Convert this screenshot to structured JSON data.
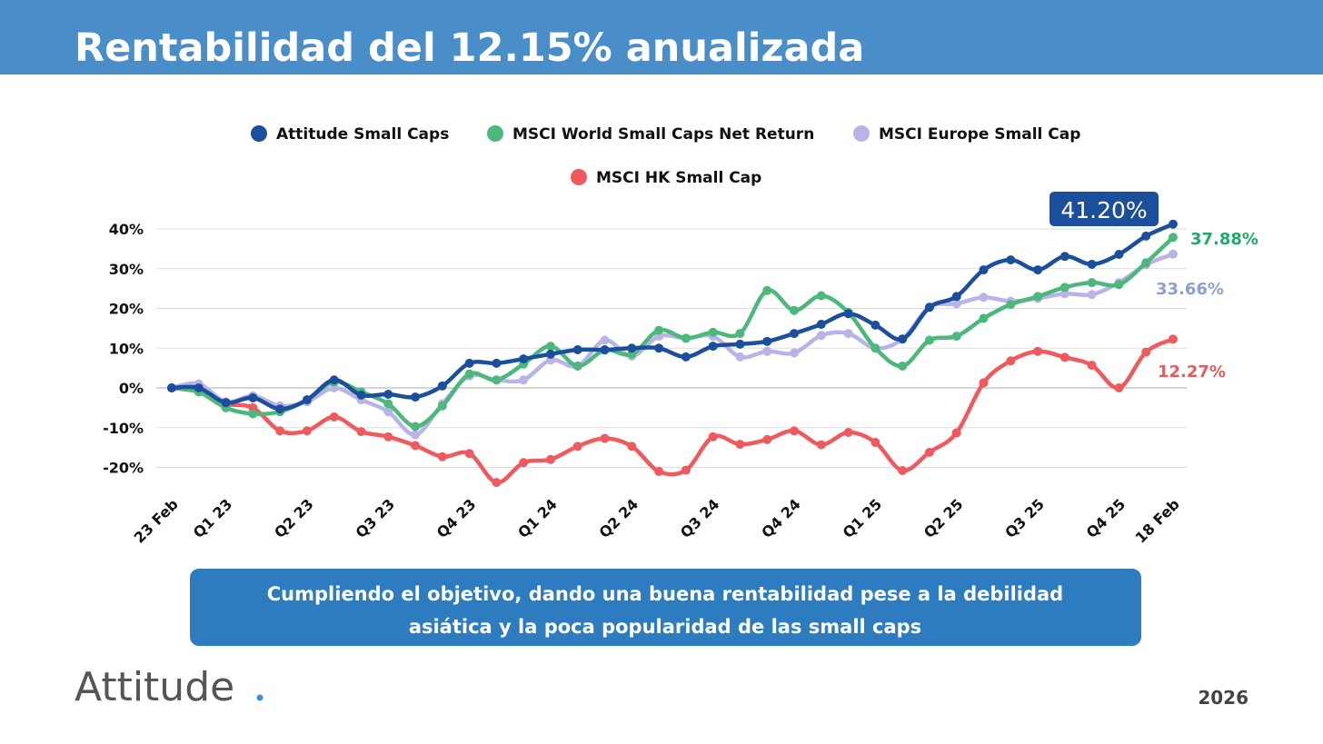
{
  "header": {
    "title": "Rentabilidad del 12.15% anualizada"
  },
  "chart_data": {
    "type": "line",
    "categories": [
      "23 Feb",
      null,
      "Q1 23",
      null,
      null,
      "Q2 23",
      null,
      null,
      "Q3 23",
      null,
      null,
      "Q4 23",
      null,
      null,
      "Q1 24",
      null,
      null,
      "Q2 24",
      null,
      null,
      "Q3 24",
      null,
      null,
      "Q4 24",
      null,
      null,
      "Q1 25",
      null,
      null,
      "Q2 25",
      null,
      null,
      "Q3 25",
      null,
      null,
      "Q4 25",
      null,
      "18 Feb"
    ],
    "ylim": [
      -25,
      45
    ],
    "yticks": [
      {
        "value": -20,
        "label": "-20%"
      },
      {
        "value": -10,
        "label": "-10%"
      },
      {
        "value": 0,
        "label": "0%"
      },
      {
        "value": 10,
        "label": "10%"
      },
      {
        "value": 20,
        "label": "20%"
      },
      {
        "value": 30,
        "label": "30%"
      },
      {
        "value": 40,
        "label": "40%"
      }
    ],
    "grid": true,
    "legend": "top",
    "series": [
      {
        "name": "Attitude Small Caps",
        "color": "#1b4f9c",
        "values": [
          0,
          0,
          -3.7,
          -2.5,
          -5.3,
          -3,
          2,
          -1.8,
          -1.6,
          -2.3,
          0.5,
          6.2,
          6.2,
          7.3,
          8.5,
          9.6,
          9.6,
          10,
          10,
          7.8,
          10.5,
          11,
          11.7,
          13.7,
          16,
          18.7,
          15.8,
          12.3,
          20.3,
          23,
          29.7,
          32.2,
          29.7,
          33.1,
          31.1,
          33.6,
          38.2,
          41.2
        ],
        "value_labels": [
          null,
          null,
          null,
          null,
          null,
          null,
          null,
          null,
          null,
          null,
          null,
          null,
          null,
          null,
          null,
          null,
          null,
          null,
          null,
          null,
          null,
          null,
          null,
          null,
          null,
          null,
          null,
          null,
          null,
          null,
          null,
          null,
          null,
          null,
          null,
          null,
          null,
          "41.20%"
        ]
      },
      {
        "name": "MSCI World Small Caps Net Return",
        "color": "#4cb87c",
        "values": [
          0,
          -1,
          -5,
          -6.5,
          -6,
          -3,
          1.5,
          -1,
          -4,
          -9.7,
          -4.5,
          3.5,
          2,
          6,
          10.5,
          5.5,
          9.5,
          8.5,
          14.5,
          12.5,
          14,
          13.7,
          24.5,
          19.5,
          23.2,
          19,
          10,
          5.5,
          12,
          13,
          17.5,
          21,
          23,
          25.3,
          26.5,
          26,
          31.5,
          37.88
        ],
        "value_labels": [
          null,
          null,
          null,
          null,
          null,
          null,
          null,
          null,
          null,
          null,
          null,
          null,
          null,
          null,
          null,
          null,
          null,
          null,
          null,
          null,
          null,
          null,
          null,
          null,
          null,
          null,
          null,
          null,
          null,
          null,
          null,
          null,
          null,
          null,
          null,
          null,
          null,
          "37.88%"
        ]
      },
      {
        "name": "MSCI Europe Small Cap",
        "color": "#b9b4e8",
        "values": [
          0,
          1,
          -3.5,
          -2,
          -4.5,
          -3.5,
          0,
          -3,
          -6,
          -11.8,
          -4,
          3,
          2,
          2,
          7,
          5.5,
          12,
          8,
          13,
          12.5,
          13,
          7.8,
          9.2,
          8.8,
          13.2,
          13.7,
          10,
          12.3,
          20.3,
          21.2,
          22.8,
          21.8,
          22.5,
          23.7,
          23.5,
          26.5,
          31,
          33.66
        ],
        "value_labels": [
          null,
          null,
          null,
          null,
          null,
          null,
          null,
          null,
          null,
          null,
          null,
          null,
          null,
          null,
          null,
          null,
          null,
          null,
          null,
          null,
          null,
          null,
          null,
          null,
          null,
          null,
          null,
          null,
          null,
          null,
          null,
          null,
          null,
          null,
          null,
          null,
          null,
          "33.66%"
        ]
      },
      {
        "name": "MSCI HK Small Cap",
        "color": "#ee5a5e",
        "values": [
          0,
          -1,
          -4,
          -5,
          -10.8,
          -10.8,
          -7.3,
          -11,
          -12.3,
          -14.5,
          -17.3,
          -16.5,
          -23.8,
          -18.8,
          -18,
          -14.7,
          -12.7,
          -14.7,
          -21,
          -20.7,
          -12.3,
          -14.2,
          -13,
          -10.8,
          -14.3,
          -11.2,
          -13.7,
          -20.8,
          -16.2,
          -11.3,
          1.3,
          6.8,
          9.2,
          7.7,
          5.7,
          0,
          9,
          12.27
        ],
        "value_labels": [
          null,
          null,
          null,
          null,
          null,
          null,
          null,
          null,
          null,
          null,
          null,
          null,
          null,
          null,
          null,
          null,
          null,
          null,
          null,
          null,
          null,
          null,
          null,
          null,
          null,
          null,
          null,
          null,
          null,
          null,
          null,
          null,
          null,
          null,
          null,
          null,
          null,
          "12.27%"
        ]
      }
    ]
  },
  "caption": [
    "Cumpliendo el objetivo, dando una buena rentabilidad pese a la debilidad",
    "asiática y la poca popularidad de las small caps"
  ],
  "footer": {
    "logo": "Attitude",
    "year": "2026"
  }
}
